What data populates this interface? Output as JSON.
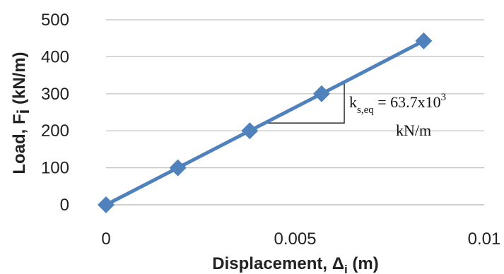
{
  "chart_data": {
    "type": "line",
    "title": "",
    "xlabel": "Displacement, Δ",
    "xlabel_sub": "i",
    "xlabel_unit": " (m)",
    "ylabel": "Load, F",
    "ylabel_sub": "i",
    "ylabel_unit": " (kN/m)",
    "xlim": [
      0,
      0.01
    ],
    "ylim": [
      0,
      500
    ],
    "x_ticks": [
      "0",
      "0.005",
      "0.01"
    ],
    "x_tick_values": [
      0,
      0.005,
      0.01
    ],
    "y_ticks": [
      "0",
      "100",
      "200",
      "300",
      "400",
      "500"
    ],
    "y_tick_values": [
      0,
      100,
      200,
      300,
      400,
      500
    ],
    "grid": "horizontal",
    "legend": "none",
    "series": [
      {
        "color": "#4f81bd",
        "marker": "diamond",
        "points": [
          {
            "x": 0,
            "y": 0
          },
          {
            "x": 0.0019,
            "y": 100
          },
          {
            "x": 0.0038,
            "y": 200
          },
          {
            "x": 0.0057,
            "y": 300
          },
          {
            "x": 0.0084,
            "y": 443
          }
        ]
      }
    ],
    "annotation": {
      "main": "k",
      "sub": "s,eq",
      "eq": " = 63.7x10",
      "sup": "3",
      "unit": "kN/m"
    }
  }
}
